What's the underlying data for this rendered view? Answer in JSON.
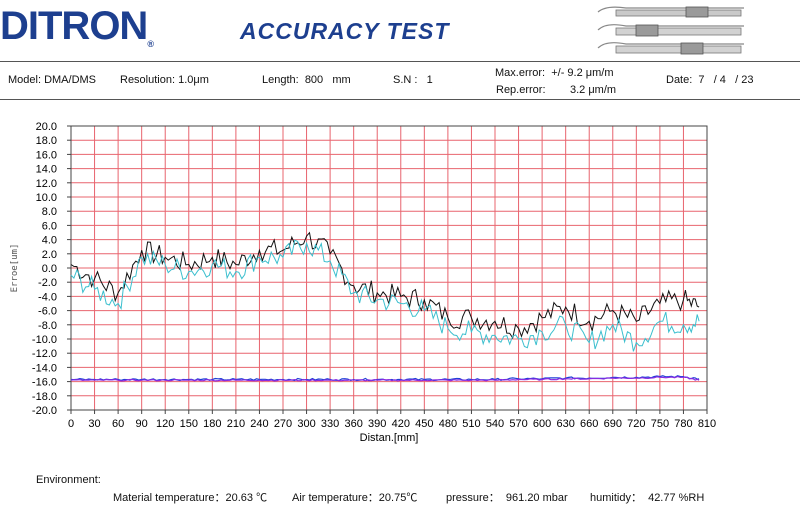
{
  "header": {
    "logo": "DITRON",
    "logo_mark": "®",
    "title": "ACCURACY TEST"
  },
  "info": {
    "model": "Model: DMA/DMS",
    "resolution": "Resolution: 1.0μm",
    "length": "Length:  800   mm",
    "sn": "S.N :   1",
    "max_error": "Max.error:  +/- 9.2 μm/m",
    "rep_error": "Rep.error:        3.2 μm/m",
    "date": "Date:  7   / 4   / 23"
  },
  "environment": {
    "label": "Environment:",
    "material": "Material temperature：20.63 ℃",
    "air": "Air temperature：20.75℃",
    "pressure": "pressure：  961.20 mbar",
    "humidity": "humitidy：  42.77 %RH"
  },
  "colors": {
    "grid": "#e8646e",
    "series_forward": "#111111",
    "series_backward": "#3bbfce",
    "baseline_1": "#1f3fd6",
    "baseline_2": "#8a2be2",
    "brand": "#1d3f8f"
  },
  "chart_data": {
    "type": "line",
    "xlabel": "Distan.[mm]",
    "ylabel": "Erroe[um]",
    "xlim": [
      0,
      810
    ],
    "ylim": [
      -20,
      20
    ],
    "x_ticks": [
      0,
      30,
      60,
      90,
      120,
      150,
      180,
      210,
      240,
      270,
      300,
      330,
      360,
      390,
      420,
      450,
      480,
      510,
      540,
      570,
      600,
      630,
      660,
      690,
      720,
      750,
      780,
      810
    ],
    "y_ticks": [
      "20.0",
      "18.0",
      "16.0",
      "14.0",
      "12.0",
      "10.0",
      "8.0",
      "6.0",
      "4.0",
      "2.0",
      "0.0",
      "-2.0",
      "-4.0",
      "-6.0",
      "-8.0",
      "-10.0",
      "-12.0",
      "-14.0",
      "-16.0",
      "-18.0",
      "-20.0"
    ],
    "grid": true,
    "x": [
      0,
      30,
      60,
      90,
      120,
      150,
      180,
      210,
      240,
      270,
      300,
      330,
      360,
      390,
      420,
      450,
      480,
      510,
      540,
      570,
      600,
      630,
      660,
      690,
      720,
      750,
      780,
      800
    ],
    "series": [
      {
        "values": [
          0.5,
          -1.5,
          -3.5,
          2.5,
          1.5,
          0.5,
          1.5,
          0.5,
          2.5,
          2.5,
          4.5,
          2.0,
          -2.5,
          -3.5,
          -4.0,
          -4.5,
          -7.0,
          -7.0,
          -7.5,
          -8.5,
          -7.0,
          -5.5,
          -7.5,
          -6.0,
          -7.5,
          -5.0,
          -4.5,
          -5.5
        ]
      },
      {
        "values": [
          -1.0,
          -3.0,
          -5.0,
          1.5,
          0.5,
          -0.5,
          0.5,
          -0.5,
          1.5,
          1.5,
          3.5,
          1.0,
          -3.5,
          -4.5,
          -5.0,
          -6.0,
          -8.5,
          -9.0,
          -9.5,
          -10.0,
          -9.0,
          -8.0,
          -10.5,
          -8.0,
          -10.5,
          -7.5,
          -8.0,
          -7.5
        ]
      },
      {
        "values": [
          -15.7,
          -15.7,
          -15.7,
          -15.7,
          -15.7,
          -15.7,
          -15.7,
          -15.7,
          -15.7,
          -15.7,
          -15.7,
          -15.7,
          -15.7,
          -15.7,
          -15.7,
          -15.7,
          -15.7,
          -15.7,
          -15.7,
          -15.6,
          -15.6,
          -15.5,
          -15.5,
          -15.4,
          -15.4,
          -15.3,
          -15.3,
          -15.6
        ]
      },
      {
        "values": [
          -15.8,
          -15.8,
          -15.8,
          -15.8,
          -15.8,
          -15.8,
          -15.8,
          -15.8,
          -15.8,
          -15.8,
          -15.8,
          -15.8,
          -15.8,
          -15.8,
          -15.8,
          -15.8,
          -15.8,
          -15.8,
          -15.8,
          -15.7,
          -15.7,
          -15.6,
          -15.6,
          -15.5,
          -15.5,
          -15.4,
          -15.4,
          -15.8
        ]
      }
    ]
  }
}
